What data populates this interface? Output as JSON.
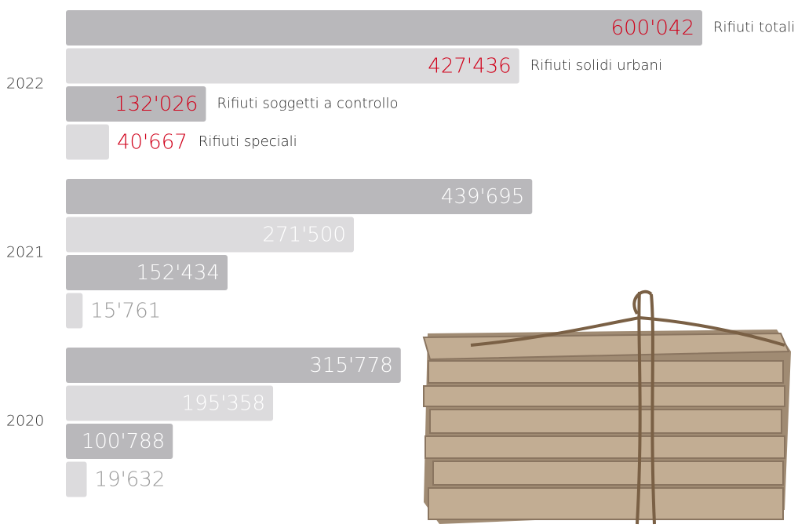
{
  "chart_data": {
    "type": "bar",
    "orientation": "horizontal",
    "categories": [
      "2022",
      "2021",
      "2020"
    ],
    "series": [
      {
        "name": "Rifiuti totali",
        "color": "#b9b8bb",
        "values": [
          600042,
          439695,
          315778
        ],
        "value_labels": [
          "600'042",
          "439'695",
          "315'778"
        ]
      },
      {
        "name": "Rifiuti solidi urbani",
        "color": "#dcdbdd",
        "values": [
          427436,
          271500,
          195358
        ],
        "value_labels": [
          "427'436",
          "271'500",
          "195'358"
        ]
      },
      {
        "name": "Rifiuti soggetti a controllo",
        "color": "#b9b8bb",
        "values": [
          132026,
          152434,
          100788
        ],
        "value_labels": [
          "132'026",
          "152'434",
          "100'788"
        ]
      },
      {
        "name": "Rifiuti speciali",
        "color": "#dcdbdd",
        "values": [
          40667,
          15761,
          19632
        ],
        "value_labels": [
          "40'667",
          "15'761",
          "19'632"
        ]
      }
    ],
    "highlight_color": "#d0021b",
    "inside_label_color": "#ffffff",
    "outside_label_color": "#9a9a9a"
  }
}
